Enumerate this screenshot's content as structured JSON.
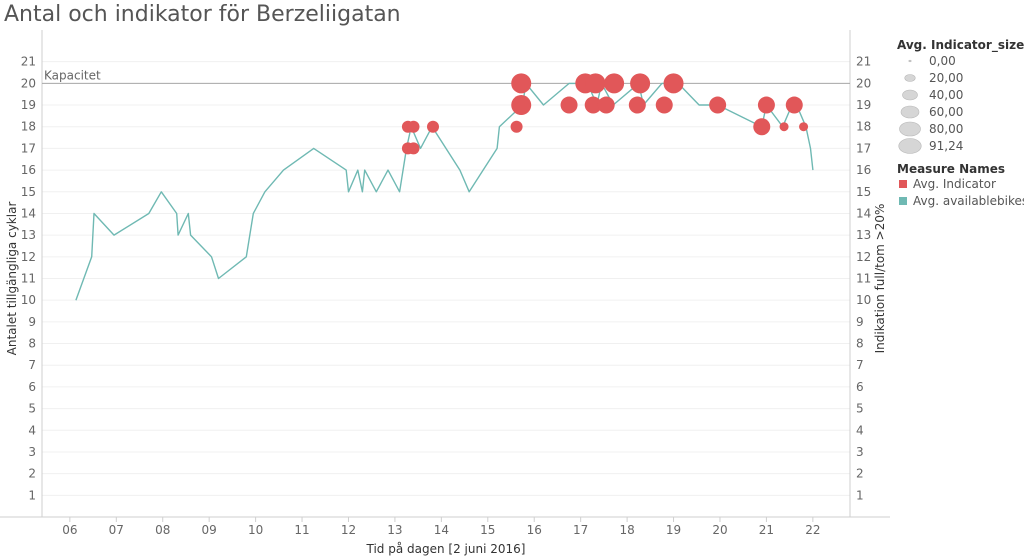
{
  "title": "Antal och indikator för Berzeliigatan",
  "chart_data": {
    "type": "line",
    "title": "Antal och indikator för Berzeliigatan",
    "xlabel": "Tid på dagen [2 juni 2016]",
    "ylabel_left": "Antalet tillgängliga cyklar",
    "ylabel_right": "Indikation full/tom >20%",
    "x_ticks": [
      "06",
      "07",
      "08",
      "09",
      "10",
      "11",
      "12",
      "13",
      "14",
      "15",
      "16",
      "17",
      "18",
      "19",
      "20",
      "21",
      "22"
    ],
    "xlim": [
      5.4,
      22.8
    ],
    "y_ticks": [
      1,
      2,
      3,
      4,
      5,
      6,
      7,
      8,
      9,
      10,
      11,
      12,
      13,
      14,
      15,
      16,
      17,
      18,
      19,
      20,
      21
    ],
    "ylim": [
      0,
      22
    ],
    "reference_line": {
      "label": "Kapacitet",
      "value": 20
    },
    "series": [
      {
        "name": "Avg. availablebikes",
        "color": "#6fb9b3",
        "x": [
          6.13,
          6.47,
          6.52,
          6.95,
          7.7,
          7.97,
          8.3,
          8.33,
          8.55,
          8.6,
          9.05,
          9.2,
          9.8,
          9.95,
          10.2,
          10.6,
          11.25,
          11.95,
          12.0,
          12.2,
          12.3,
          12.35,
          12.6,
          12.85,
          13.1,
          13.25,
          13.35,
          13.55,
          13.8,
          14.4,
          14.6,
          14.9,
          15.2,
          15.25,
          15.75,
          15.82,
          16.2,
          16.75,
          17.15,
          17.35,
          17.45,
          17.7,
          18.25,
          18.35,
          18.75,
          19.1,
          19.55,
          19.95,
          20.9,
          21.0,
          21.35,
          21.55,
          21.65,
          21.85,
          21.95,
          22.0
        ],
        "y": [
          10,
          12,
          14,
          13,
          14,
          15,
          14,
          13,
          14,
          13,
          12,
          11,
          12,
          14,
          15,
          16,
          17,
          16,
          15,
          16,
          15,
          16,
          15,
          16,
          15,
          17,
          18,
          17,
          18,
          16,
          15,
          16,
          17,
          18,
          19,
          20,
          19,
          20,
          20,
          19,
          20,
          19,
          20,
          19,
          20,
          20,
          19,
          19,
          18,
          19,
          18,
          19,
          19,
          18,
          17,
          16
        ]
      },
      {
        "name": "Avg. Indicator",
        "color": "#e15759",
        "points": [
          {
            "x": 13.28,
            "y": 17,
            "size": 20
          },
          {
            "x": 13.4,
            "y": 17,
            "size": 20
          },
          {
            "x": 13.28,
            "y": 18,
            "size": 20
          },
          {
            "x": 13.4,
            "y": 18,
            "size": 20
          },
          {
            "x": 13.82,
            "y": 18,
            "size": 20
          },
          {
            "x": 15.62,
            "y": 18,
            "size": 20
          },
          {
            "x": 15.72,
            "y": 19,
            "size": 60
          },
          {
            "x": 15.72,
            "y": 20,
            "size": 60
          },
          {
            "x": 16.75,
            "y": 19,
            "size": 40
          },
          {
            "x": 17.1,
            "y": 20,
            "size": 60
          },
          {
            "x": 17.32,
            "y": 20,
            "size": 60
          },
          {
            "x": 17.27,
            "y": 19,
            "size": 40
          },
          {
            "x": 17.55,
            "y": 19,
            "size": 40
          },
          {
            "x": 17.72,
            "y": 20,
            "size": 60
          },
          {
            "x": 18.22,
            "y": 19,
            "size": 40
          },
          {
            "x": 18.28,
            "y": 20,
            "size": 60
          },
          {
            "x": 18.8,
            "y": 19,
            "size": 40
          },
          {
            "x": 19.0,
            "y": 20,
            "size": 60
          },
          {
            "x": 19.95,
            "y": 19,
            "size": 40
          },
          {
            "x": 20.9,
            "y": 18,
            "size": 40
          },
          {
            "x": 21.0,
            "y": 19,
            "size": 40
          },
          {
            "x": 21.38,
            "y": 18,
            "size": 15
          },
          {
            "x": 21.6,
            "y": 19,
            "size": 40
          },
          {
            "x": 21.8,
            "y": 18,
            "size": 15
          }
        ]
      }
    ],
    "legend_size": {
      "title": "Avg. Indicator_size",
      "items": [
        "0,00",
        "20,00",
        "40,00",
        "60,00",
        "80,00",
        "91,24"
      ]
    },
    "legend_color": {
      "title": "Measure Names",
      "items": [
        {
          "label": "Avg. Indicator",
          "color": "#e15759"
        },
        {
          "label": "Avg. availablebikes",
          "color": "#6fb9b3"
        }
      ]
    },
    "grid": true,
    "legend_position": "right"
  }
}
